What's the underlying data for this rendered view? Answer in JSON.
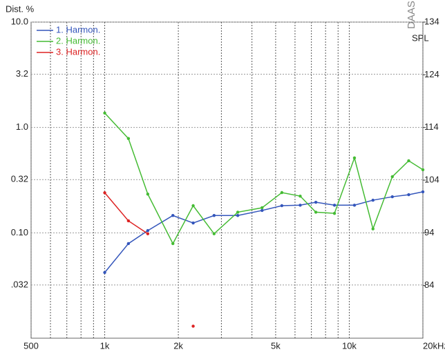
{
  "chart_data": {
    "type": "line",
    "y_label": "Dist. %",
    "y2_label": "SPL",
    "brand": "DAAS",
    "x": [
      1000,
      1250,
      1500,
      1900,
      2300,
      2800,
      3500,
      4400,
      5300,
      6300,
      7300,
      8700,
      10500,
      12500,
      15000,
      17500,
      20000
    ],
    "series": [
      {
        "name": "1. Harmon.",
        "color": "#3355bb",
        "values": [
          0.042,
          0.079,
          0.105,
          0.146,
          0.124,
          0.146,
          0.146,
          0.163,
          0.181,
          0.183,
          0.195,
          0.183,
          0.183,
          0.204,
          0.22,
          0.23,
          0.245
        ]
      },
      {
        "name": "2. Harmon.",
        "color": "#44bb33",
        "values": [
          1.37,
          0.785,
          0.233,
          0.079,
          0.181,
          0.098,
          0.157,
          0.173,
          0.241,
          0.223,
          0.157,
          0.153,
          0.514,
          0.109,
          0.341,
          0.483,
          0.397
        ]
      },
      {
        "name": "3. Harmon.",
        "color": "#dd2222",
        "values": [
          0.24,
          0.13,
          0.098,
          null,
          0.013,
          null,
          null,
          null,
          null,
          null,
          null,
          null,
          null,
          null,
          null,
          null,
          null
        ]
      }
    ],
    "xlim": [
      500,
      20000
    ],
    "log_x": true,
    "xticks": [
      500,
      {
        "value": 1000,
        "label": "1k"
      },
      {
        "value": 2000,
        "label": "2k"
      },
      {
        "value": 5000,
        "label": "5k"
      },
      {
        "value": 10000,
        "label": "10k"
      },
      {
        "value": 20000,
        "label": "20kHz"
      }
    ],
    "xminor": [
      600,
      700,
      800,
      900,
      3000,
      4000,
      6000,
      7000,
      8000,
      9000
    ],
    "ylim": [
      0.01,
      10
    ],
    "log_y": true,
    "yticks": [
      {
        "value": 10,
        "label": "10.0"
      },
      3.2,
      {
        "value": 1,
        "label": "1.0"
      },
      0.32,
      {
        "value": 0.1,
        "label": "0.10"
      },
      {
        "value": 0.032,
        "label": ".032"
      }
    ],
    "y2lim": [
      74,
      134
    ],
    "y2ticks": [
      84,
      94,
      104,
      114,
      124,
      134
    ],
    "grid": true,
    "legend": "top-left"
  }
}
